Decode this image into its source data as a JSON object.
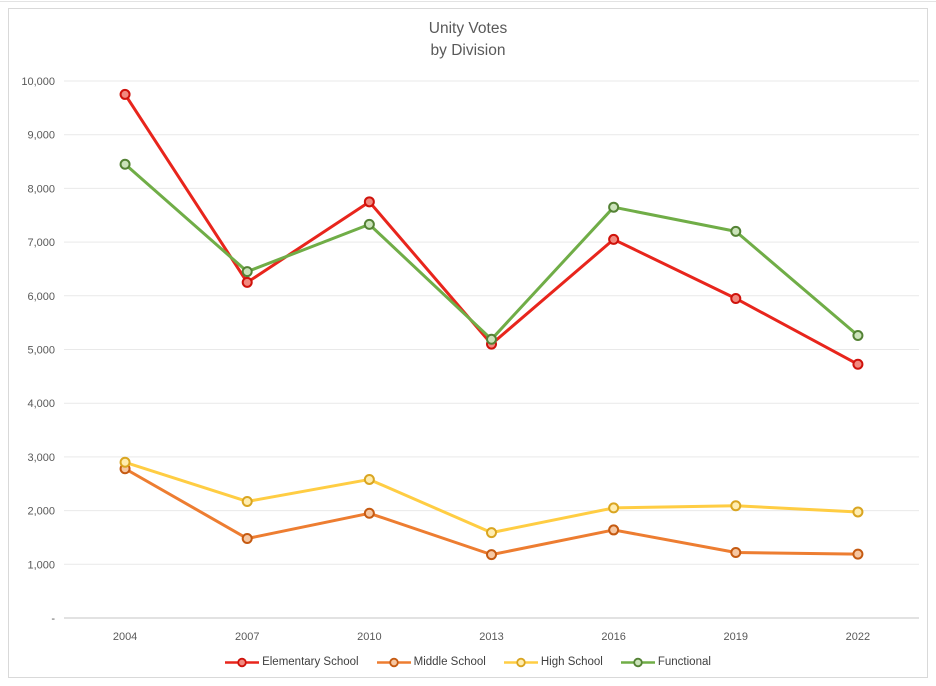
{
  "chart": {
    "title_line1": "Unity Votes",
    "title_line2": "by Division"
  },
  "chart_data": {
    "type": "line",
    "title": "Unity Votes by Division",
    "xlabel": "",
    "ylabel": "",
    "categories": [
      "2004",
      "2007",
      "2010",
      "2013",
      "2016",
      "2019",
      "2022"
    ],
    "series": [
      {
        "name": "Elementary School",
        "color": "#e8251c",
        "marker_fill": "#f2897f",
        "marker_stroke": "#cf120b",
        "values": [
          9750,
          6250,
          7750,
          5100,
          7050,
          5950,
          4725
        ]
      },
      {
        "name": "Middle School",
        "color": "#ed7d31",
        "marker_fill": "#f6c7a2",
        "marker_stroke": "#c55a11",
        "values": [
          2780,
          1480,
          1950,
          1180,
          1640,
          1220,
          1190
        ]
      },
      {
        "name": "High School",
        "color": "#ffcd43",
        "marker_fill": "#ffedb0",
        "marker_stroke": "#d9a521",
        "values": [
          2900,
          2170,
          2580,
          1590,
          2050,
          2090,
          1975
        ]
      },
      {
        "name": "Functional",
        "color": "#70ad47",
        "marker_fill": "#cbe3ba",
        "marker_stroke": "#548235",
        "values": [
          8450,
          6450,
          7330,
          5190,
          7650,
          7200,
          5260
        ]
      }
    ],
    "ylim": [
      0,
      10000
    ],
    "y_step": 1000,
    "y_tick_labels": [
      "-",
      "1,000",
      "2,000",
      "3,000",
      "4,000",
      "5,000",
      "6,000",
      "7,000",
      "8,000",
      "9,000",
      "10,000"
    ],
    "grid": true,
    "legend_position": "bottom"
  },
  "colors": {
    "grid": "#e9e9e9",
    "axis": "#c6c6c6",
    "frame_border": "#d9d9d9",
    "tick_text": "#595959",
    "title_text": "#595959",
    "legend_text": "#3f3f3f"
  }
}
